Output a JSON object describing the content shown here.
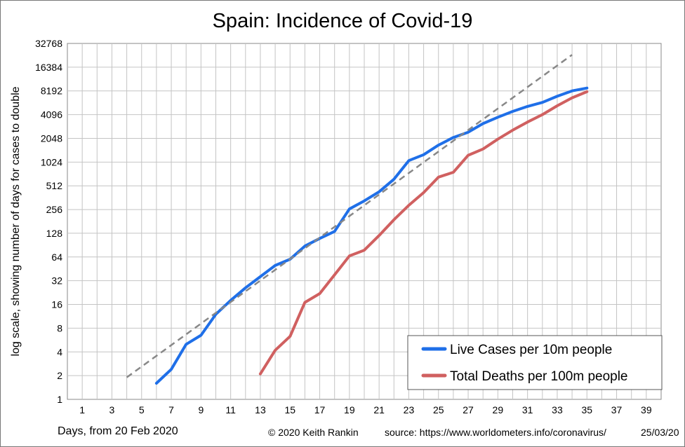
{
  "chart_data": {
    "type": "line",
    "title": "Spain: Incidence of Covid-19",
    "xlabel": "Days, from 20 Feb 2020",
    "ylabel": "log scale, showing number of days for cases to double",
    "y_scale": "log2",
    "xlim": [
      0,
      40
    ],
    "ylim": [
      1,
      32768
    ],
    "x_ticks": [
      1,
      3,
      5,
      7,
      9,
      11,
      13,
      15,
      17,
      19,
      21,
      23,
      25,
      27,
      29,
      31,
      33,
      35,
      37,
      39
    ],
    "x_tick_labels": [
      "1",
      "3",
      "5",
      "7",
      "9",
      "11",
      "13",
      "15",
      "17",
      "19",
      "21",
      "23",
      "25",
      "27",
      "29",
      "31",
      "33",
      "35",
      "37",
      "39"
    ],
    "y_ticks": [
      1,
      2,
      4,
      8,
      16,
      32,
      64,
      128,
      256,
      512,
      1024,
      2048,
      4096,
      8192,
      16384,
      32768
    ],
    "y_tick_labels": [
      "1",
      "2",
      "4",
      "8",
      "16",
      "32",
      "64",
      "128",
      "256",
      "512",
      "1024",
      "2048",
      "4096",
      "8192",
      "16384",
      "32768"
    ],
    "grid": true,
    "legend_position": "bottom-right",
    "series": [
      {
        "name": "Live Cases per 10m people",
        "color": "#1f6fe8",
        "x": [
          6,
          7,
          8,
          9,
          10,
          11,
          12,
          13,
          14,
          15,
          16,
          17,
          18,
          19,
          20,
          21,
          22,
          23,
          24,
          25,
          26,
          27,
          28,
          29,
          30,
          31,
          32,
          33,
          34,
          35
        ],
        "y": [
          1.6,
          2.4,
          5,
          6.5,
          12,
          18,
          26,
          36,
          50,
          60,
          88,
          110,
          135,
          260,
          330,
          430,
          620,
          1070,
          1270,
          1680,
          2100,
          2450,
          3150,
          3800,
          4500,
          5200,
          5850,
          7000,
          8200,
          8900
        ]
      },
      {
        "name": "Total Deaths per 100m people",
        "color": "#d06060",
        "x": [
          13,
          14,
          15,
          16,
          17,
          18,
          19,
          20,
          21,
          22,
          23,
          24,
          25,
          26,
          27,
          28,
          29,
          30,
          31,
          32,
          33,
          34,
          35
        ],
        "y": [
          2.1,
          4.2,
          6.3,
          17,
          22,
          38,
          66,
          78,
          120,
          190,
          290,
          420,
          660,
          760,
          1250,
          1500,
          2000,
          2600,
          3300,
          4100,
          5300,
          6700,
          8000
        ]
      },
      {
        "color": "#888888",
        "style": "dashed",
        "x": [
          4,
          34
        ],
        "y": [
          1.9,
          23500
        ]
      }
    ]
  },
  "footer": {
    "copyright": "© 2020  Keith Rankin",
    "source": "source:  https://www.worldometers.info/coronavirus/",
    "date": "25/03/20"
  }
}
